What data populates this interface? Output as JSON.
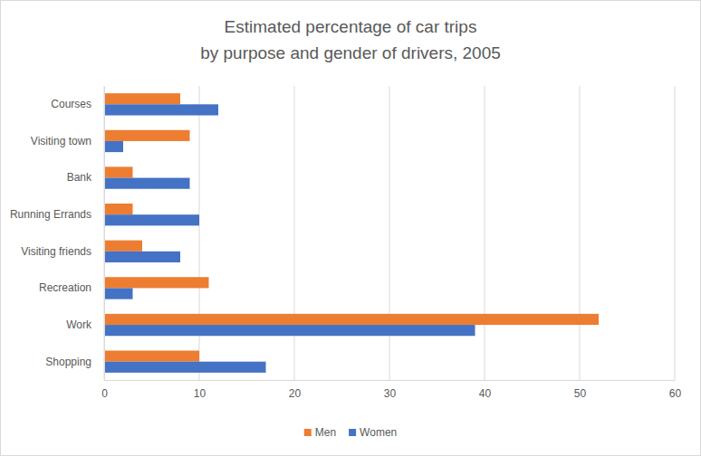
{
  "chart_data": {
    "type": "bar",
    "orientation": "horizontal",
    "title": "Estimated percentage of car trips\nby purpose and gender of drivers, 2005",
    "categories": [
      "Courses",
      "Visiting town",
      "Bank",
      "Running Errands",
      "Visiting friends",
      "Recreation",
      "Work",
      "Shopping"
    ],
    "series": [
      {
        "name": "Men",
        "color": "#ed7d31",
        "values": [
          8,
          9,
          3,
          3,
          4,
          11,
          52,
          10
        ]
      },
      {
        "name": "Women",
        "color": "#4472c4",
        "values": [
          12,
          2,
          9,
          10,
          8,
          3,
          39,
          17
        ]
      }
    ],
    "xlim": [
      0,
      60
    ],
    "xticks": [
      0,
      10,
      20,
      30,
      40,
      50,
      60
    ],
    "grid": true,
    "legend": "bottom"
  }
}
